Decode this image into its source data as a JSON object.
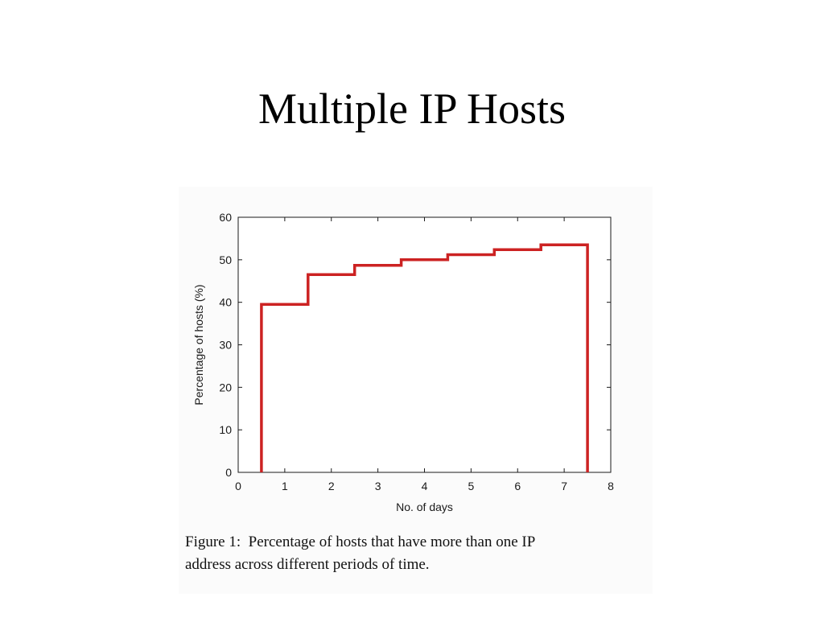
{
  "slide": {
    "title": "Multiple IP Hosts"
  },
  "figure": {
    "caption_line1": "Figure 1:  Percentage of hosts that have more than one IP",
    "caption_line2": "address across different periods of time."
  },
  "chart_data": {
    "type": "line",
    "style": "stairs",
    "title": "",
    "xlabel": "No. of days",
    "ylabel": "Percentage of hosts (%)",
    "xlim": [
      0,
      8
    ],
    "ylim": [
      0,
      60
    ],
    "xticks": [
      0,
      1,
      2,
      3,
      4,
      5,
      6,
      7,
      8
    ],
    "yticks": [
      0,
      10,
      20,
      30,
      40,
      50,
      60
    ],
    "grid": false,
    "legend": "none",
    "series": [
      {
        "color": "#cc2222",
        "x": [
          1,
          2,
          3,
          4,
          5,
          6,
          7
        ],
        "values": [
          39.5,
          46.5,
          48.7,
          50.0,
          51.2,
          52.4,
          53.5
        ],
        "bin_width": 1,
        "baseline": 0
      }
    ]
  }
}
